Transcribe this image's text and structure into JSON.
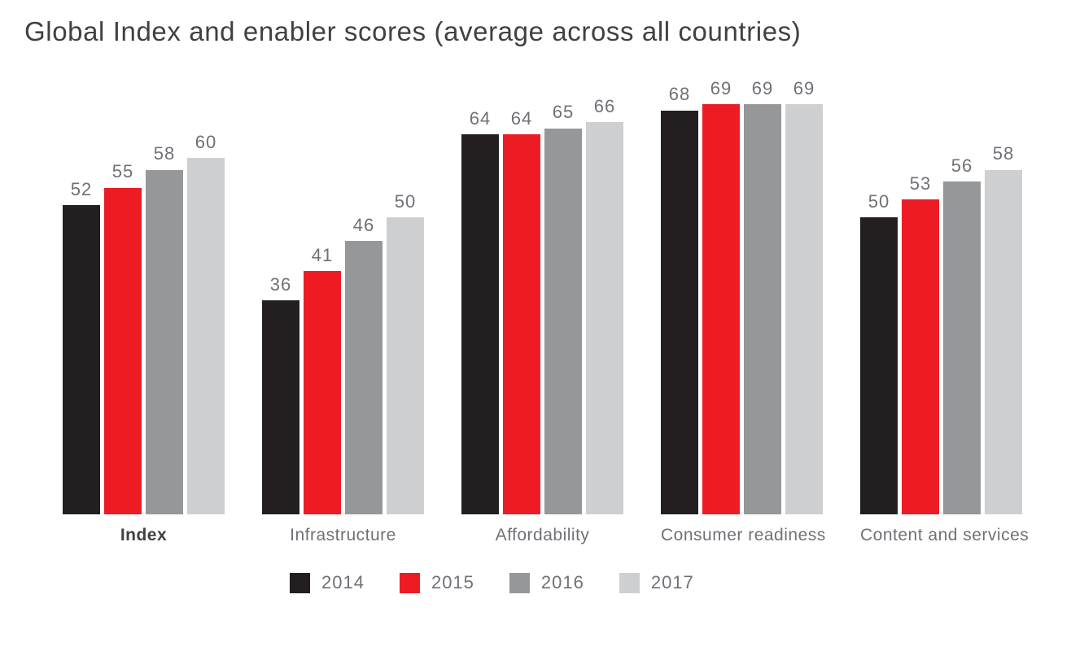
{
  "chart_data": {
    "type": "bar",
    "title": "Global Index and enabler scores (average across all countries)",
    "categories": [
      "Index",
      "Infrastructure",
      "Affordability",
      "Consumer readiness",
      "Content and services"
    ],
    "series": [
      {
        "name": "2014",
        "color": "#231f20",
        "values": [
          52,
          36,
          64,
          68,
          50
        ]
      },
      {
        "name": "2015",
        "color": "#ed1c24",
        "values": [
          55,
          41,
          64,
          69,
          53
        ]
      },
      {
        "name": "2016",
        "color": "#959799",
        "values": [
          58,
          46,
          65,
          69,
          56
        ]
      },
      {
        "name": "2017",
        "color": "#cdcfd0",
        "values": [
          60,
          50,
          66,
          69,
          58
        ]
      }
    ],
    "ylim": [
      0,
      69
    ],
    "grid": false,
    "axes_shown": false,
    "value_labels": true,
    "legend_position": "bottom",
    "bold_category": "Index"
  },
  "colors": {
    "title_text": "#414042",
    "value_label_text": "#6e7176",
    "category_label_text": "#6e7176",
    "background": "#ffffff"
  }
}
